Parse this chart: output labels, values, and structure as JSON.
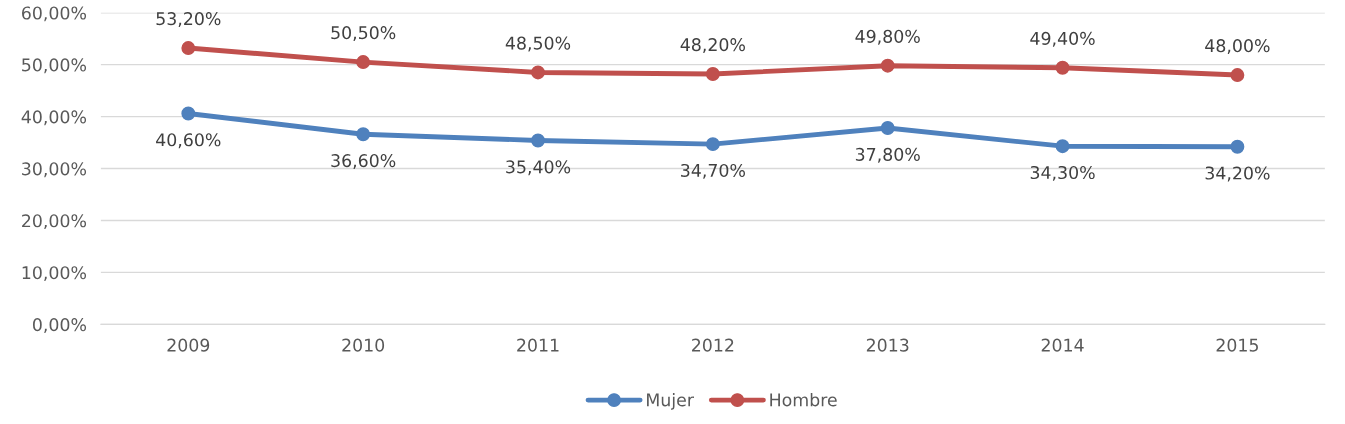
{
  "chart_data": {
    "type": "line",
    "categories": [
      "2009",
      "2010",
      "2011",
      "2012",
      "2013",
      "2014",
      "2015"
    ],
    "series": [
      {
        "name": "Mujer",
        "color": "#4f81bd",
        "values": [
          40.6,
          36.6,
          35.4,
          34.7,
          37.8,
          34.3,
          34.2
        ],
        "value_labels": [
          "40,60%",
          "36,60%",
          "35,40%",
          "34,70%",
          "37,80%",
          "34,30%",
          "34,20%"
        ]
      },
      {
        "name": "Hombre",
        "color": "#c0504d",
        "values": [
          53.2,
          50.5,
          48.5,
          48.2,
          49.8,
          49.4,
          48.0
        ],
        "value_labels": [
          "53,20%",
          "50,50%",
          "48,50%",
          "48,20%",
          "49,80%",
          "49,40%",
          "48,00%"
        ]
      }
    ],
    "ylim": [
      0,
      60
    ],
    "yticks": [
      {
        "value": 0,
        "label": "0,00%"
      },
      {
        "value": 10,
        "label": "10,00%"
      },
      {
        "value": 20,
        "label": "20,00%"
      },
      {
        "value": 30,
        "label": "30,00%"
      },
      {
        "value": 40,
        "label": "40,00%"
      },
      {
        "value": 50,
        "label": "50,00%"
      },
      {
        "value": 60,
        "label": "60,00%"
      }
    ],
    "grid": "y",
    "legend": "bottom",
    "marker": "circle",
    "line_style": "solid"
  }
}
